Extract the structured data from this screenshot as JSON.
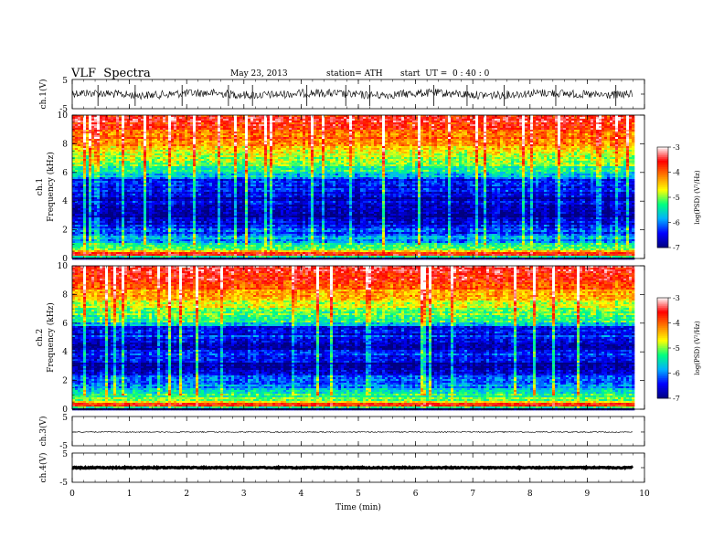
{
  "header": {
    "title": "VLF  Spectra",
    "date": "May 23, 2013",
    "station": "station= ATH",
    "start": "start  UT =  0 : 40 : 0"
  },
  "chart_data": [
    {
      "type": "line",
      "panel": "ch1-waveform",
      "ylabel": "ch.1(V)",
      "ylim": [
        -5,
        5
      ],
      "yticks": [
        "5",
        "-5"
      ],
      "xlim": [
        0,
        10
      ],
      "data_end_min": 9.8,
      "baseline_V": 0.0,
      "spikes_min": [
        0.45,
        1.1,
        1.92,
        2.73,
        3.15,
        4.1,
        4.78,
        5.2,
        6.32,
        6.9,
        7.55,
        8.45,
        9.5
      ]
    },
    {
      "type": "heatmap",
      "panel": "ch1-spectrogram",
      "ylabel": "ch.1",
      "ylabel2": "Frequency  (kHz)",
      "ylim": [
        0,
        10
      ],
      "yticks": [
        "0",
        "2",
        "4",
        "6",
        "8",
        "10"
      ],
      "xlim": [
        0,
        10
      ],
      "data_end_min": 9.8,
      "value_unit": "log(PSD) (V^2/Hz)",
      "bands_khz_to_logPSD": [
        [
          0.0,
          -6.8
        ],
        [
          0.3,
          -3.3
        ],
        [
          0.55,
          -4.9
        ],
        [
          0.9,
          -5.4
        ],
        [
          1.3,
          -5.9
        ],
        [
          1.8,
          -6.2
        ],
        [
          2.4,
          -6.6
        ],
        [
          3.0,
          -6.9
        ],
        [
          3.6,
          -6.5
        ],
        [
          4.2,
          -6.8
        ],
        [
          4.8,
          -6.4
        ],
        [
          5.5,
          -6.6
        ],
        [
          5.8,
          -5.6
        ],
        [
          6.5,
          -5.2
        ],
        [
          7.3,
          -4.7
        ],
        [
          8.2,
          -4.2
        ],
        [
          9.0,
          -3.8
        ],
        [
          10.0,
          -3.6
        ]
      ]
    },
    {
      "type": "heatmap",
      "panel": "ch2-spectrogram",
      "ylabel": "ch.2",
      "ylabel2": "Frequency  (kHz)",
      "ylim": [
        0,
        10
      ],
      "yticks": [
        "0",
        "2",
        "4",
        "6",
        "8",
        "10"
      ],
      "xlim": [
        0,
        10
      ],
      "data_end_min": 9.8,
      "value_unit": "log(PSD) (V^2/Hz)",
      "bands_khz_to_logPSD": [
        [
          0.0,
          -6.8
        ],
        [
          0.3,
          -3.4
        ],
        [
          0.6,
          -5.0
        ],
        [
          1.0,
          -5.3
        ],
        [
          1.5,
          -5.8
        ],
        [
          2.0,
          -6.2
        ],
        [
          2.6,
          -6.5
        ],
        [
          3.2,
          -6.8
        ],
        [
          3.8,
          -6.4
        ],
        [
          4.4,
          -6.8
        ],
        [
          5.0,
          -6.3
        ],
        [
          5.6,
          -6.7
        ],
        [
          6.0,
          -5.5
        ],
        [
          6.8,
          -5.0
        ],
        [
          7.6,
          -4.5
        ],
        [
          8.5,
          -4.0
        ],
        [
          9.2,
          -3.7
        ],
        [
          10.0,
          -3.5
        ]
      ]
    },
    {
      "type": "line",
      "panel": "ch3-waveform",
      "ylabel": "ch.3(V)",
      "ylim": [
        -5,
        5
      ],
      "yticks": [
        "5",
        "-5"
      ],
      "xlim": [
        0,
        10
      ],
      "data_end_min": 9.8,
      "baseline_V": -0.3
    },
    {
      "type": "line",
      "panel": "ch4-waveform",
      "ylabel": "ch.4(V)",
      "ylim": [
        -5,
        5
      ],
      "yticks": [
        "5",
        "-5"
      ],
      "xlim": [
        0,
        10
      ],
      "data_end_min": 9.8,
      "baseline_V": 0.0,
      "xlabel": "Time  (min)",
      "xticks": [
        "0",
        "1",
        "2",
        "3",
        "4",
        "5",
        "6",
        "7",
        "8",
        "9",
        "10"
      ]
    }
  ],
  "colorbars": [
    {
      "name": "ch1-colorbar",
      "label": "log(PSD) (V²/Hz)",
      "ticks": [
        "-3",
        "-4",
        "-5",
        "-6",
        "-7"
      ],
      "range": [
        -7,
        -3
      ]
    },
    {
      "name": "ch2-colorbar",
      "label": "log(PSD) (V²/Hz)",
      "ticks": [
        "-3",
        "-4",
        "-5",
        "-6",
        "-7"
      ],
      "range": [
        -7,
        -3
      ]
    }
  ],
  "colormap": [
    "#000080",
    "#0000ff",
    "#00b0ff",
    "#00ff80",
    "#ffff00",
    "#ff8000",
    "#ff0000",
    "#ffffff"
  ]
}
